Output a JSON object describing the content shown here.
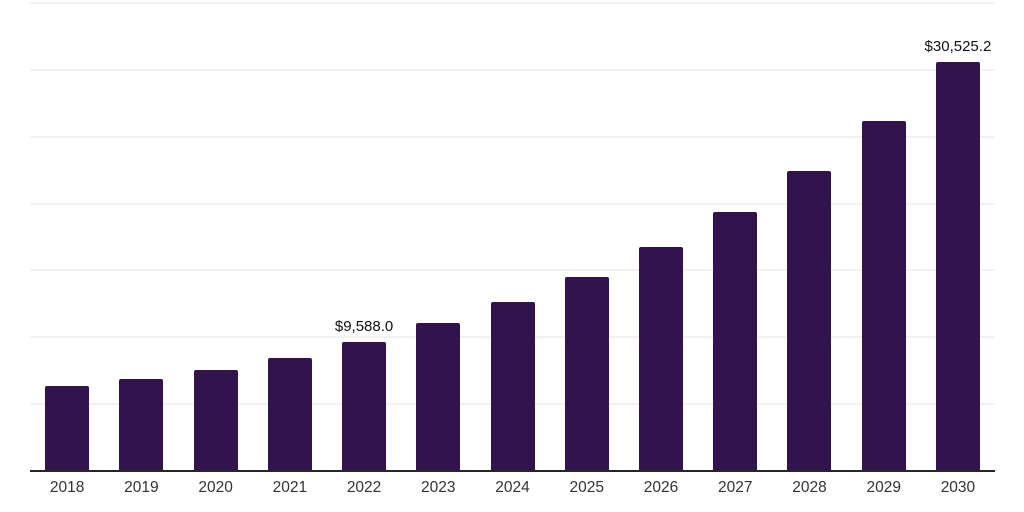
{
  "chart_data": {
    "type": "bar",
    "title": "",
    "categories": [
      "2018",
      "2019",
      "2020",
      "2021",
      "2022",
      "2023",
      "2024",
      "2025",
      "2026",
      "2027",
      "2028",
      "2029",
      "2030"
    ],
    "values": [
      6250,
      6780,
      7445,
      8410,
      9588.0,
      11020,
      12545,
      14440,
      16680,
      19280,
      22335,
      26130,
      30525.2
    ],
    "data_labels": {
      "2022": "$9,588.0",
      "2030": "$30,525.2"
    },
    "xlabel": "",
    "ylabel": "",
    "ylim": [
      0,
      35000
    ],
    "gridline_values": [
      5000,
      10000,
      15000,
      20000,
      25000,
      30000,
      35000
    ],
    "grid": "horizontal",
    "legend": "none"
  },
  "colors": {
    "bar": "#32134E",
    "gridline": "#F2F2F2",
    "axis_line": "#262626",
    "tick_label": "#333333",
    "data_label": "#111111",
    "background": "#FFFFFF"
  }
}
